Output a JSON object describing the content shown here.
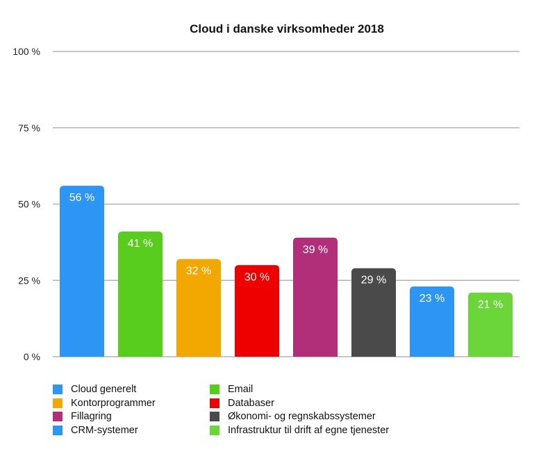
{
  "chart_data": {
    "type": "bar",
    "title": "Cloud i danske virksomheder 2018",
    "xlabel": "",
    "ylabel": "",
    "ylim": [
      0,
      100
    ],
    "yticks": [
      0,
      25,
      50,
      75,
      100
    ],
    "ytick_labels": [
      "0 %",
      "25 %",
      "50 %",
      "75 %",
      "100 %"
    ],
    "grid": true,
    "legend_position": "bottom",
    "categories": [
      "Cloud generelt",
      "Email",
      "Kontorprogrammer",
      "Databaser",
      "Fillagring",
      "Økonomi- og regnskabssystemer",
      "CRM-systemer",
      "Infrastruktur til drift af egne tjenester"
    ],
    "values": [
      56,
      41,
      32,
      30,
      39,
      29,
      23,
      21
    ],
    "value_labels": [
      "56 %",
      "41 %",
      "32 %",
      "30 %",
      "39 %",
      "29 %",
      "23 %",
      "21 %"
    ],
    "colors": [
      "#2d96f5",
      "#58cd1e",
      "#f2a800",
      "#ee0000",
      "#b12e78",
      "#4a4a4a",
      "#2d96f5",
      "#6ad63a"
    ]
  }
}
